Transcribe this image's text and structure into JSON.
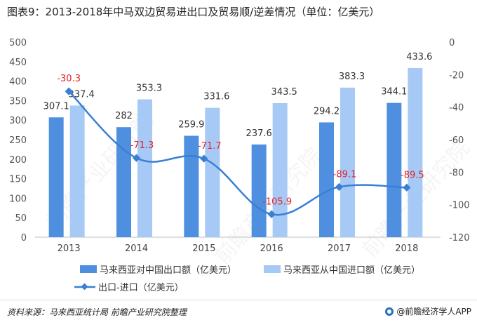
{
  "title": "图表9：2013-2018年中马双边贸易进出口及贸易顺/逆差情况（单位：亿美元）",
  "source": "资料来源：马来西亚统计局 前瞻产业研究院整理",
  "brand": "@前瞻经济学人APP",
  "watermark": "前瞻产业研究院",
  "chart_data": {
    "type": "bar+line",
    "categories": [
      "2013",
      "2014",
      "2015",
      "2016",
      "2017",
      "2018"
    ],
    "left_axis": {
      "ylim": [
        0,
        500
      ],
      "ticks": [
        "0",
        "50",
        "100",
        "150",
        "200",
        "250",
        "300",
        "350",
        "400",
        "450",
        "500"
      ]
    },
    "right_axis": {
      "ylim": [
        -120,
        0
      ],
      "ticks": [
        "-120",
        "-100",
        "-80",
        "-60",
        "-40",
        "-20",
        "0"
      ]
    },
    "series": [
      {
        "name": "马来西亚对中国出口额（亿美元）",
        "kind": "bar",
        "axis": "left",
        "color": "#4f8fe0",
        "values": [
          307.1,
          282,
          259.9,
          237.6,
          294.2,
          344.1
        ],
        "labels": [
          "307.1",
          "282",
          "259.9",
          "237.6",
          "294.2",
          "344.1"
        ]
      },
      {
        "name": "马来西亚从中国进口额（亿美元）",
        "kind": "bar",
        "axis": "left",
        "color": "#a6c9f5",
        "values": [
          337.4,
          353.3,
          331.6,
          343.5,
          383.3,
          433.6
        ],
        "labels": [
          "337.4",
          "353.3",
          "331.6",
          "343.5",
          "383.3",
          "433.6"
        ]
      },
      {
        "name": "出口-进口（亿美元）",
        "kind": "line",
        "axis": "right",
        "color": "#3a7fd5",
        "label_color": "#e8202a",
        "values": [
          -30.3,
          -71.3,
          -71.7,
          -105.9,
          -89.1,
          -89.5
        ],
        "labels": [
          "-30.3",
          "-71.3",
          "-71.7",
          "-105.9",
          "-89.1",
          "-89.5"
        ]
      }
    ],
    "legend_position": "bottom",
    "grid": false
  }
}
